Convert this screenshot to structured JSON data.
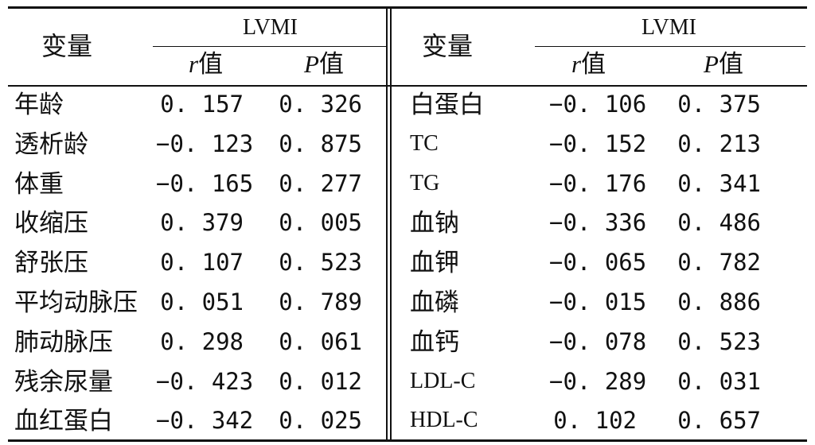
{
  "header": {
    "left_variable": "变量",
    "left_group": "LVMI",
    "left_r": "值",
    "left_p": "值",
    "right_variable": "变量",
    "right_group": "LVMI",
    "right_r": "值",
    "right_p": "值",
    "r_italic": "r",
    "p_italic": "P"
  },
  "rows": [
    {
      "left_var": "年龄",
      "left_r": "0. 157",
      "left_p": "0. 326",
      "right_var": "白蛋白",
      "right_r": "−0. 106",
      "right_p": "0. 375"
    },
    {
      "left_var": "透析龄",
      "left_r": "−0. 123",
      "left_p": "0. 875",
      "right_var": "TC",
      "right_r": "−0. 152",
      "right_p": "0. 213"
    },
    {
      "left_var": "体重",
      "left_r": "−0. 165",
      "left_p": "0. 277",
      "right_var": "TG",
      "right_r": "−0. 176",
      "right_p": "0. 341"
    },
    {
      "left_var": "收缩压",
      "left_r": "0. 379",
      "left_p": "0. 005",
      "right_var": "血钠",
      "right_r": "−0. 336",
      "right_p": "0. 486"
    },
    {
      "left_var": "舒张压",
      "left_r": "0. 107",
      "left_p": "0. 523",
      "right_var": "血钾",
      "right_r": "−0. 065",
      "right_p": "0. 782"
    },
    {
      "left_var": "平均动脉压",
      "left_r": "0. 051",
      "left_p": "0. 789",
      "right_var": "血磷",
      "right_r": "−0. 015",
      "right_p": "0. 886"
    },
    {
      "left_var": "肺动脉压",
      "left_r": "0. 298",
      "left_p": "0. 061",
      "right_var": "血钙",
      "right_r": "−0. 078",
      "right_p": "0. 523"
    },
    {
      "left_var": "残余尿量",
      "left_r": "−0. 423",
      "left_p": "0. 012",
      "right_var": "LDL-C",
      "right_r": "−0. 289",
      "right_p": "0. 031"
    },
    {
      "left_var": "血红蛋白",
      "left_r": "−0. 342",
      "left_p": "0. 025",
      "right_var": "HDL-C",
      "right_r": "0. 102",
      "right_p": "0. 657"
    }
  ]
}
